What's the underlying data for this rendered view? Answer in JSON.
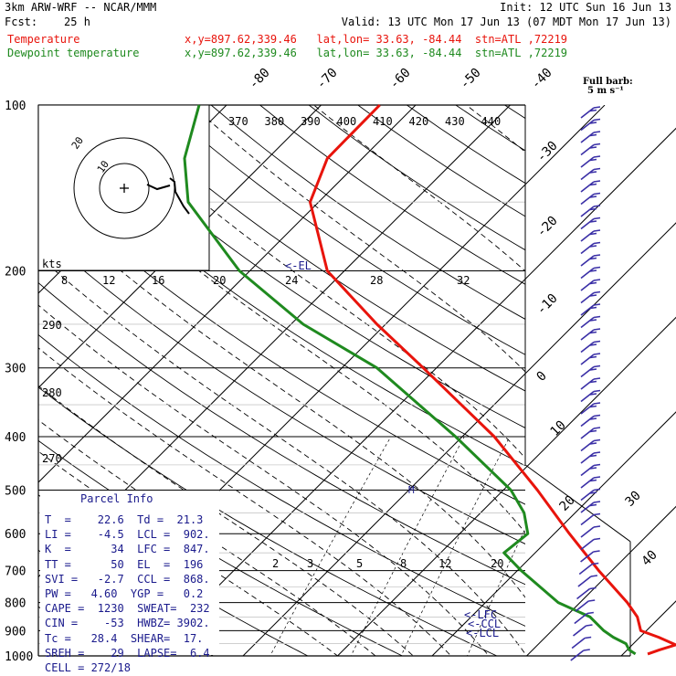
{
  "header": {
    "model": "3km ARW-WRF -- NCAR/MMM",
    "init": "Init: 12 UTC Sun 16 Jun 13",
    "fcst": "Fcst:    25 h",
    "valid": "Valid: 13 UTC Mon 17 Jun 13 (07 MDT Mon 17 Jun 13)",
    "temp_label": "Temperature",
    "dew_label": "Dewpoint temperature",
    "temp_loc": "x,y=897.62,339.46   lat,lon= 33.63, -84.44  stn=ATL ,72219",
    "dew_loc": "x,y=897.62,339.46   lat,lon= 33.63, -84.44  stn=ATL ,72219"
  },
  "colors": {
    "temperature": "#e8140c",
    "dewpoint": "#1f8a1f",
    "wind": "#3a2fa6",
    "text_blue": "#1a1a8c"
  },
  "wind_header": [
    "Full barb:",
    "5 m s⁻¹"
  ],
  "hodograph": {
    "units": "kts",
    "ring_labels": [
      "10",
      "20"
    ]
  },
  "mixing_ratio_labels": [
    "2",
    "3",
    "5",
    "8",
    "12",
    "20"
  ],
  "mixing_ratio_values": [
    2,
    3,
    5,
    8,
    12,
    20
  ],
  "theta_e_labels": [
    "370",
    "380",
    "390",
    "400",
    "410",
    "420",
    "430",
    "440"
  ],
  "theta_e_values": [
    370,
    380,
    390,
    400,
    410,
    420,
    430,
    440
  ],
  "upper_temp_labels": [
    "8",
    "12",
    "16",
    "20",
    "24",
    "28",
    "32"
  ],
  "upper_temp_values": [
    8,
    12,
    16,
    20,
    24,
    28,
    32
  ],
  "dry_adiabat_labels": [
    "290",
    "280",
    "270"
  ],
  "levels": {
    "el": "<-EL",
    "lfc": "<-LFC",
    "lcl": "<-LCL",
    "ccl": "<-CCL"
  },
  "parcel_title": "Parcel Info",
  "parcel_rows": [
    "T  =    22.6  Td =  21.3",
    "LI =    -4.5  LCL =  902.",
    "K  =      34  LFC =  847.",
    "TT =      50  EL  =  196",
    "SVI =   -2.7  CCL =  868.",
    "PW =   4.60  YGP =   0.2",
    "CAPE =  1230  SWEAT=  232",
    "CIN =    -53  HWBZ= 3902.",
    "Tc =   28.4  SHEAR=  17.",
    "SREH =    29  LAPSE=  6.4",
    "CELL = 272/18"
  ],
  "chart_data": {
    "type": "skew-t",
    "pressure_labels": [
      "100",
      "200",
      "300",
      "400",
      "500",
      "600",
      "700",
      "800",
      "900",
      "1000"
    ],
    "pressure_levels_hpa": [
      100,
      200,
      300,
      400,
      500,
      600,
      700,
      800,
      900,
      1000
    ],
    "isotherm_labels": [
      "-80",
      "-70",
      "-60",
      "-50",
      "-40",
      "-30",
      "-20",
      "-10",
      "0",
      "10",
      "20",
      "30",
      "40"
    ],
    "isotherms_c": [
      -80,
      -70,
      -60,
      -50,
      -40,
      -30,
      -20,
      -10,
      0,
      10,
      20,
      30,
      40
    ],
    "temperature": [
      {
        "p": 992,
        "t": 22.6
      },
      {
        "p": 975,
        "t": 23.4
      },
      {
        "p": 955,
        "t": 24.6
      },
      {
        "p": 925,
        "t": 22.0
      },
      {
        "p": 900,
        "t": 19.4
      },
      {
        "p": 850,
        "t": 17.6
      },
      {
        "p": 800,
        "t": 15.0
      },
      {
        "p": 700,
        "t": 8.6
      },
      {
        "p": 600,
        "t": 1.6
      },
      {
        "p": 500,
        "t": -6.4
      },
      {
        "p": 400,
        "t": -16.6
      },
      {
        "p": 300,
        "t": -31.4
      },
      {
        "p": 250,
        "t": -40.9
      },
      {
        "p": 200,
        "t": -51.8
      },
      {
        "p": 150,
        "t": -60.9
      },
      {
        "p": 125,
        "t": -63.7
      },
      {
        "p": 100,
        "t": -63.8
      }
    ],
    "dewpoint": [
      {
        "p": 992,
        "t": 21.3
      },
      {
        "p": 975,
        "t": 20.2
      },
      {
        "p": 950,
        "t": 19.2
      },
      {
        "p": 925,
        "t": 17.2
      },
      {
        "p": 900,
        "t": 15.5
      },
      {
        "p": 850,
        "t": 12.6
      },
      {
        "p": 800,
        "t": 7.7
      },
      {
        "p": 700,
        "t": 0.4
      },
      {
        "p": 650,
        "t": -3.3
      },
      {
        "p": 600,
        "t": -2.8
      },
      {
        "p": 550,
        "t": -5.4
      },
      {
        "p": 500,
        "t": -9.2
      },
      {
        "p": 400,
        "t": -20.7
      },
      {
        "p": 300,
        "t": -36.3
      },
      {
        "p": 250,
        "t": -48.7
      },
      {
        "p": 200,
        "t": -61.1
      },
      {
        "p": 150,
        "t": -73.8
      },
      {
        "p": 125,
        "t": -78.8
      },
      {
        "p": 100,
        "t": -82.9
      }
    ],
    "level_pressures": {
      "el": 196,
      "lfc": 847,
      "lcl": 902,
      "ccl": 868
    },
    "hodograph_trace": [
      [
        -1,
        -14
      ],
      [
        -2,
        -12
      ],
      [
        3,
        -10
      ],
      [
        7,
        -8
      ],
      [
        10,
        -6
      ],
      [
        11,
        -4
      ],
      [
        9,
        -1
      ],
      [
        7,
        2
      ],
      [
        6,
        1
      ],
      [
        3,
        0
      ],
      [
        0,
        1
      ]
    ],
    "hodograph_rings_kts": [
      10,
      20
    ]
  }
}
